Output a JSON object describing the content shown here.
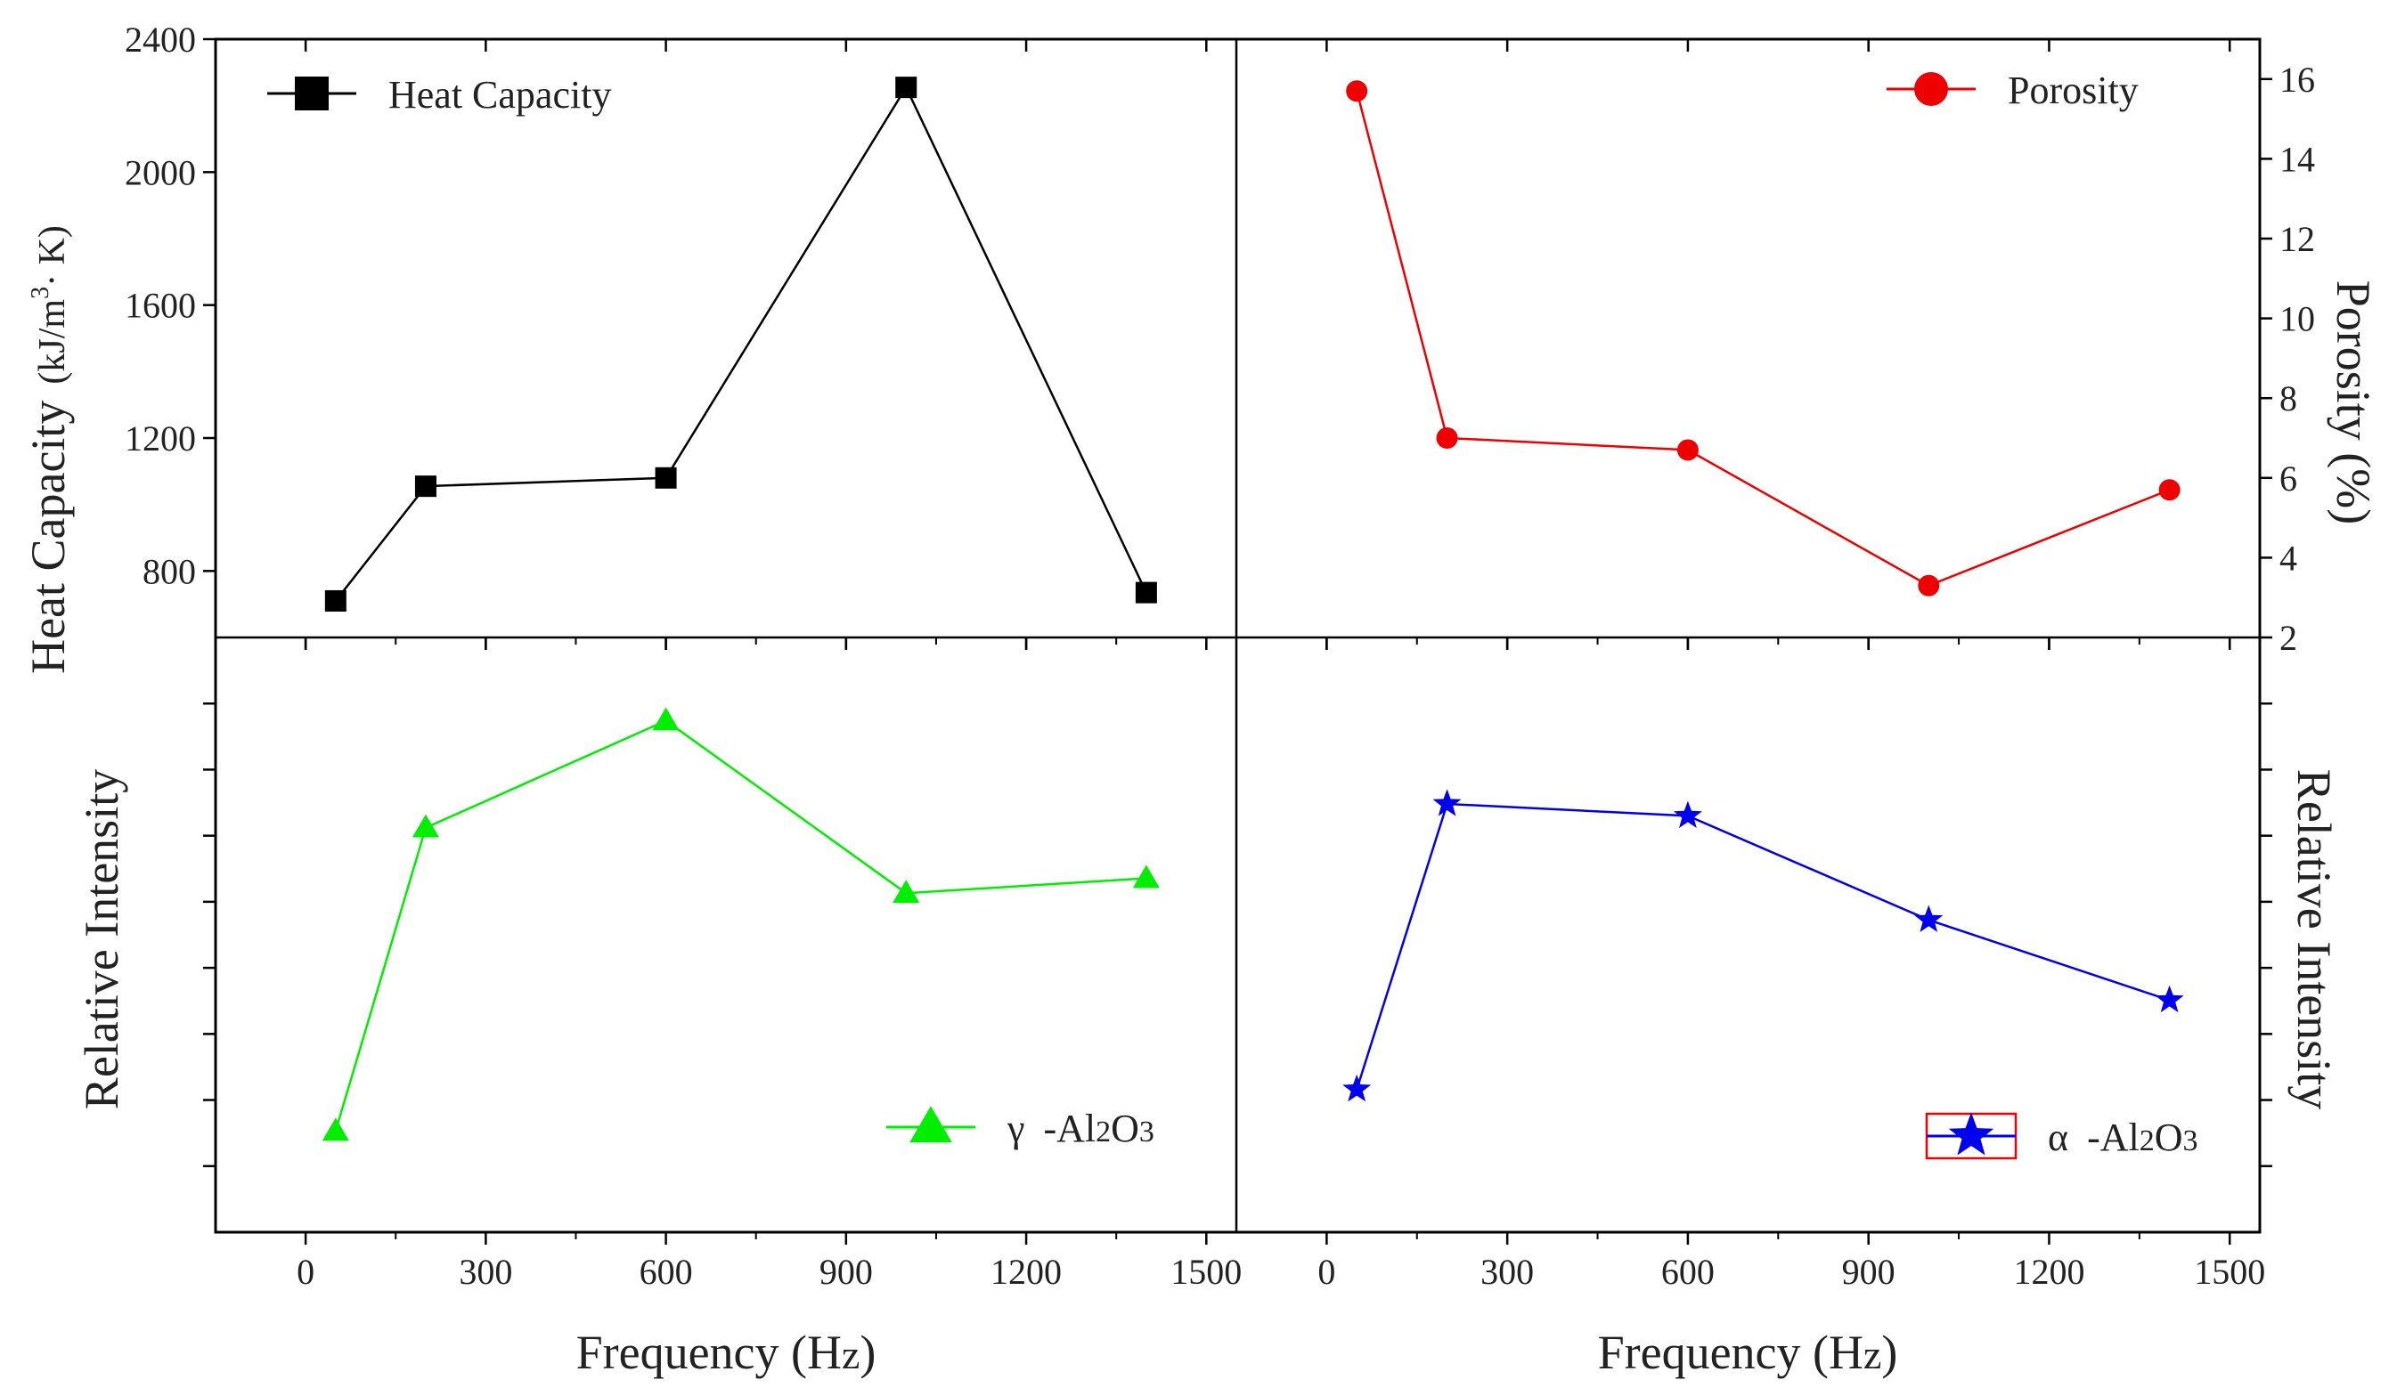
{
  "chart_data": [
    {
      "type": "line",
      "panel": "top-left",
      "ylabel": "Heat Capacity",
      "ylabel_unit": "(kJ/m³·K)",
      "ylim": [
        600,
        2400
      ],
      "yticks": [
        "800",
        "1200",
        "1600",
        "2000",
        "2400"
      ],
      "xlim": [
        -150,
        1550
      ],
      "series": [
        {
          "name": "Heat Capacity",
          "color": "#000000",
          "marker": "square",
          "x": [
            50,
            200,
            600,
            1000,
            1400
          ],
          "y": [
            710,
            1055,
            1080,
            2255,
            735
          ]
        }
      ],
      "legend": {
        "label": "Heat Capacity",
        "position": "top-left"
      }
    },
    {
      "type": "line",
      "panel": "top-right",
      "ylabel": "Porosity (%)",
      "ylim": [
        2,
        17
      ],
      "yticks": [
        "2",
        "4",
        "6",
        "8",
        "10",
        "12",
        "14",
        "16"
      ],
      "xlim": [
        -150,
        1550
      ],
      "series": [
        {
          "name": "Porosity",
          "color": "#ee0000",
          "marker": "circle",
          "x": [
            50,
            200,
            600,
            1000,
            1400
          ],
          "y": [
            15.7,
            7.0,
            6.7,
            3.3,
            5.7
          ]
        }
      ],
      "legend": {
        "label": "Porosity",
        "position": "top-right"
      }
    },
    {
      "type": "line",
      "panel": "bottom-left",
      "xlabel": "Frequency (Hz)",
      "ylabel": "Relative Intensity",
      "ylim": [
        0,
        100
      ],
      "xlim": [
        -150,
        1550
      ],
      "xticks": [
        "0",
        "300",
        "600",
        "900",
        "1200",
        "1500"
      ],
      "series": [
        {
          "name": "γ -Al2O3",
          "color": "#00ee00",
          "marker": "triangle",
          "x": [
            50,
            200,
            600,
            1000,
            1400
          ],
          "y": [
            17,
            68,
            86,
            57,
            59.5
          ]
        }
      ],
      "legend": {
        "symbol": "γ",
        "label": " -Al",
        "sub1": "2",
        "mid": "O",
        "sub2": "3",
        "position": "bottom-right"
      }
    },
    {
      "type": "line",
      "panel": "bottom-right",
      "xlabel": "Frequency (Hz)",
      "ylabel": "Relative Intensity",
      "ylim": [
        0,
        100
      ],
      "xlim": [
        -150,
        1550
      ],
      "xticks": [
        "0",
        "300",
        "600",
        "900",
        "1200",
        "1500"
      ],
      "series": [
        {
          "name": "α -Al2O3",
          "color": "#0000ee",
          "marker": "star",
          "x": [
            50,
            200,
            600,
            1000,
            1400
          ],
          "y": [
            24,
            72,
            70,
            52.5,
            39
          ]
        }
      ],
      "legend": {
        "symbol": "α",
        "label": " -Al",
        "sub1": "2",
        "mid": "O",
        "sub2": "3",
        "position": "bottom-right"
      }
    }
  ],
  "labels": {
    "x_axis_left": "Frequency (H",
    "x_axis_left_z": "z",
    "x_axis_left_end": ")",
    "x_axis_right": "Frequency (H",
    "x_axis_right_z": "z",
    "x_axis_right_end": ")",
    "y_top_left": "Heat Capacity",
    "y_top_left_unit_a": "(kJ/m",
    "y_top_left_unit_sup": "3",
    "y_top_left_unit_b": "· K)",
    "y_top_right": "Porosity (%)",
    "y_bottom_left": "Relative Intensity",
    "y_bottom_right": "Relative Intensity"
  }
}
